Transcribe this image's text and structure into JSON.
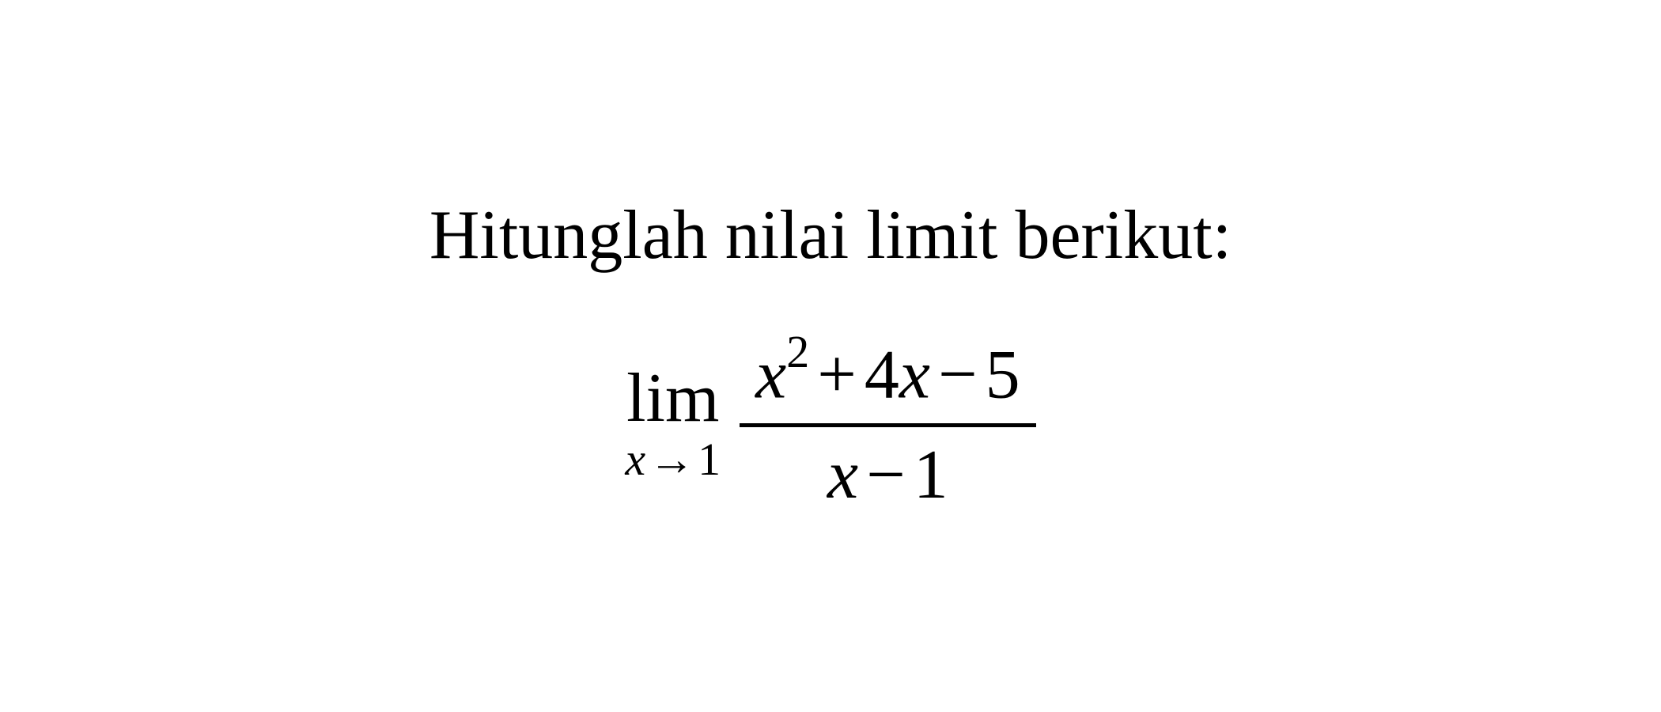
{
  "title": "Hitunglah nilai limit berikut:",
  "limit": {
    "operator": "lim",
    "variable": "x",
    "arrow": "→",
    "approaches": "1"
  },
  "fraction": {
    "numerator": {
      "term1_var": "x",
      "term1_exp": "2",
      "op1": "+",
      "term2_coef": "4",
      "term2_var": "x",
      "op2": "−",
      "term3": "5"
    },
    "denominator": {
      "term1_var": "x",
      "op1": "−",
      "term2": "1"
    }
  },
  "style": {
    "background_color": "#ffffff",
    "text_color": "#000000",
    "title_fontsize": 88,
    "equation_fontsize": 88,
    "subscript_fontsize": 58,
    "superscript_fontsize": 58,
    "font_family": "Times New Roman",
    "fraction_line_thickness": 5
  }
}
